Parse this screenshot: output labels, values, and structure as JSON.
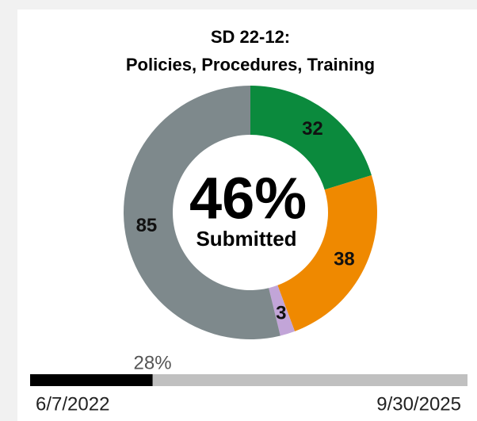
{
  "chart_data": {
    "type": "donut",
    "title": [
      "SD 22-12:",
      "Policies, Procedures, Training"
    ],
    "values": [
      32,
      38,
      3,
      85
    ],
    "colors": [
      "#0b8a3d",
      "#ef8900",
      "#c2a5d8",
      "#7e898c"
    ],
    "center_value": "46%",
    "center_label": "Submitted"
  },
  "progress": {
    "value": 28,
    "label": "28%",
    "start": "6/7/2022",
    "end": "9/30/2025",
    "max": 100
  }
}
